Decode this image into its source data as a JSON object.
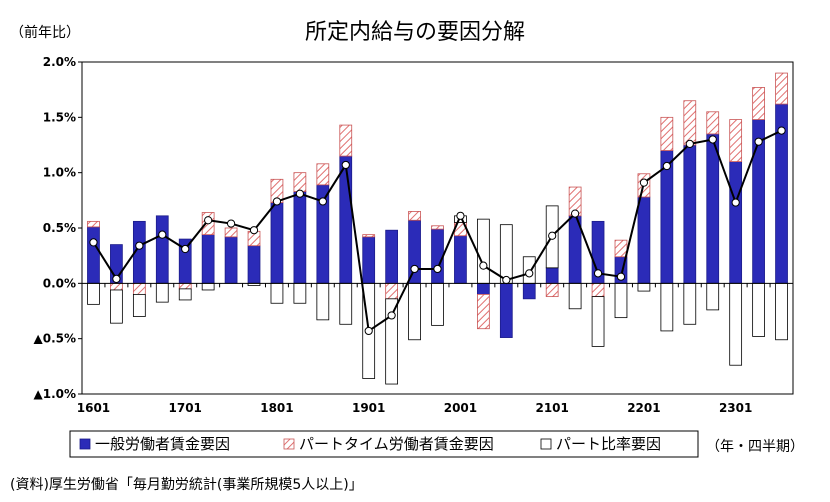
{
  "chart_data": {
    "type": "bar",
    "title": "所定内給与の要因分解",
    "ylabel": "（前年比）",
    "xlabel": "（年・四半期）",
    "source": "(資料)厚生労働省「毎月勤労統計(事業所規模5人以上)」",
    "ylim": [
      -1.0,
      2.0
    ],
    "yticks": [
      2.0,
      1.5,
      1.0,
      0.5,
      0.0,
      -0.5,
      -1.0
    ],
    "ytick_labels": [
      "2.0%",
      "1.5%",
      "1.0%",
      "0.5%",
      "0.0%",
      "▲0.5%",
      "▲1.0%"
    ],
    "x_labels": [
      {
        "label": "1601",
        "index": 0
      },
      {
        "label": "1701",
        "index": 4
      },
      {
        "label": "1801",
        "index": 8
      },
      {
        "label": "1901",
        "index": 12
      },
      {
        "label": "2001",
        "index": 16
      },
      {
        "label": "2101",
        "index": 20
      },
      {
        "label": "2201",
        "index": 24
      },
      {
        "label": "2301",
        "index": 28
      }
    ],
    "categories": [
      "1601",
      "1602",
      "1603",
      "1604",
      "1701",
      "1702",
      "1703",
      "1704",
      "1801",
      "1802",
      "1803",
      "1804",
      "1901",
      "1902",
      "1903",
      "1904",
      "2001",
      "2002",
      "2003",
      "2004",
      "2101",
      "2102",
      "2103",
      "2104",
      "2201",
      "2202",
      "2203",
      "2204",
      "2301",
      "2302",
      "2303"
    ],
    "stacked": true,
    "grid": false,
    "legend_position": "bottom",
    "series": [
      {
        "name": "一般労働者賃金要因",
        "style": "solid",
        "color": "#2b2bb8",
        "values": [
          0.51,
          0.35,
          0.56,
          0.61,
          0.4,
          0.44,
          0.42,
          0.34,
          0.73,
          0.83,
          0.89,
          1.15,
          0.42,
          0.48,
          0.57,
          0.49,
          0.43,
          -0.1,
          -0.49,
          -0.14,
          0.14,
          0.61,
          0.56,
          0.24,
          0.78,
          1.2,
          1.25,
          1.35,
          1.1,
          1.48,
          1.62
        ]
      },
      {
        "name": "パートタイム労働者賃金要因",
        "style": "hatched",
        "color": "#e07070",
        "values": [
          0.05,
          -0.06,
          -0.1,
          0.0,
          -0.05,
          0.2,
          0.08,
          0.13,
          0.21,
          0.17,
          0.19,
          0.28,
          0.02,
          -0.14,
          0.08,
          0.03,
          0.12,
          -0.31,
          0.0,
          0.0,
          -0.12,
          0.26,
          -0.12,
          0.15,
          0.21,
          0.3,
          0.4,
          0.2,
          0.38,
          0.29,
          0.28
        ]
      },
      {
        "name": "パート比率要因",
        "style": "outline",
        "color": "#ffffff",
        "values": [
          -0.19,
          -0.3,
          -0.2,
          -0.17,
          -0.1,
          -0.06,
          0.0,
          -0.02,
          -0.18,
          -0.18,
          -0.33,
          -0.37,
          -0.86,
          -0.77,
          -0.51,
          -0.38,
          0.06,
          0.58,
          0.53,
          0.24,
          0.56,
          -0.23,
          -0.45,
          -0.31,
          -0.07,
          -0.43,
          -0.37,
          -0.24,
          -0.74,
          -0.48,
          -0.51
        ]
      }
    ],
    "line": {
      "name": "所定内給与（前年比）",
      "values": [
        0.37,
        0.04,
        0.34,
        0.44,
        0.31,
        0.57,
        0.54,
        0.48,
        0.74,
        0.81,
        0.74,
        1.07,
        -0.43,
        -0.29,
        0.13,
        0.13,
        0.61,
        0.16,
        0.03,
        0.09,
        0.43,
        0.63,
        0.09,
        0.06,
        0.91,
        1.06,
        1.26,
        1.3,
        0.73,
        1.28,
        1.38
      ]
    }
  }
}
